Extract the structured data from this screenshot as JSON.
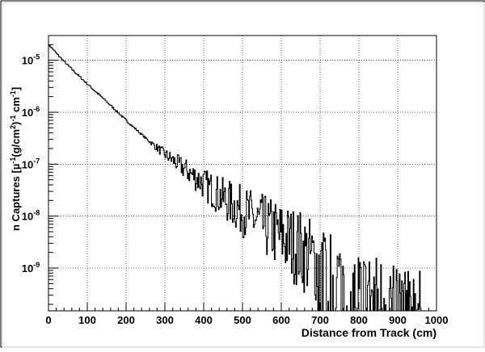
{
  "chart_data": {
    "type": "line",
    "style": "step-histogram",
    "title": "",
    "xlabel": "Distance from Track (cm)",
    "ylabel_parts": [
      "n Captures [µ",
      "-1",
      "(g/cm",
      "2",
      ")",
      "-1",
      " cm",
      "-1",
      "]"
    ],
    "xlim": [
      0,
      1000
    ],
    "ylim": [
      1.5e-10,
      3e-05
    ],
    "y_scale": "log",
    "grid": true,
    "x_ticks": [
      "0",
      "100",
      "200",
      "300",
      "400",
      "500",
      "600",
      "700",
      "800",
      "900",
      "1000"
    ],
    "y_ticks": [
      {
        "base": "10",
        "exp": "-5",
        "value": 1e-05
      },
      {
        "base": "10",
        "exp": "-6",
        "value": 1e-06
      },
      {
        "base": "10",
        "exp": "-7",
        "value": 1e-07
      },
      {
        "base": "10",
        "exp": "-8",
        "value": 1e-08
      },
      {
        "base": "10",
        "exp": "-9",
        "value": 1e-09
      }
    ],
    "series": [
      {
        "values": [
          [
            0,
            2e-05
          ],
          [
            10,
            1.7e-05
          ],
          [
            25,
            1.25e-05
          ],
          [
            50,
            8e-06
          ],
          [
            75,
            5.3e-06
          ],
          [
            100,
            3.5e-06
          ],
          [
            150,
            1.6e-06
          ],
          [
            200,
            7e-07
          ],
          [
            250,
            3.2e-07
          ],
          [
            300,
            1.55e-07
          ],
          [
            350,
            8.2e-08
          ],
          [
            400,
            4.2e-08
          ],
          [
            450,
            2.2e-08
          ],
          [
            500,
            1.25e-08
          ],
          [
            550,
            7e-09
          ],
          [
            600,
            4e-09
          ],
          [
            650,
            2.3e-09
          ],
          [
            700,
            1.1e-09
          ],
          [
            750,
            7e-10
          ],
          [
            800,
            4e-10
          ],
          [
            850,
            3e-10
          ],
          [
            900,
            2.5e-10
          ],
          [
            960,
            2e-10
          ]
        ]
      }
    ]
  }
}
